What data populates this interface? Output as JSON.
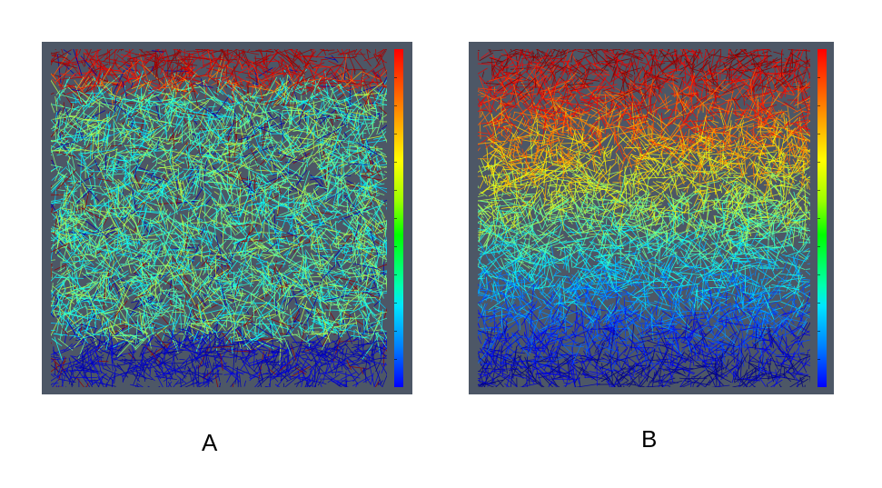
{
  "panels": [
    {
      "label": "A",
      "colorscale": [
        "#ff0000",
        "#ffff00",
        "#00ff00",
        "#00ffff",
        "#0000ff"
      ]
    },
    {
      "label": "B",
      "colorscale": [
        "#ff0000",
        "#ffff00",
        "#00ff00",
        "#00ffff",
        "#0000ff"
      ]
    }
  ],
  "background_color": "#4d5766"
}
